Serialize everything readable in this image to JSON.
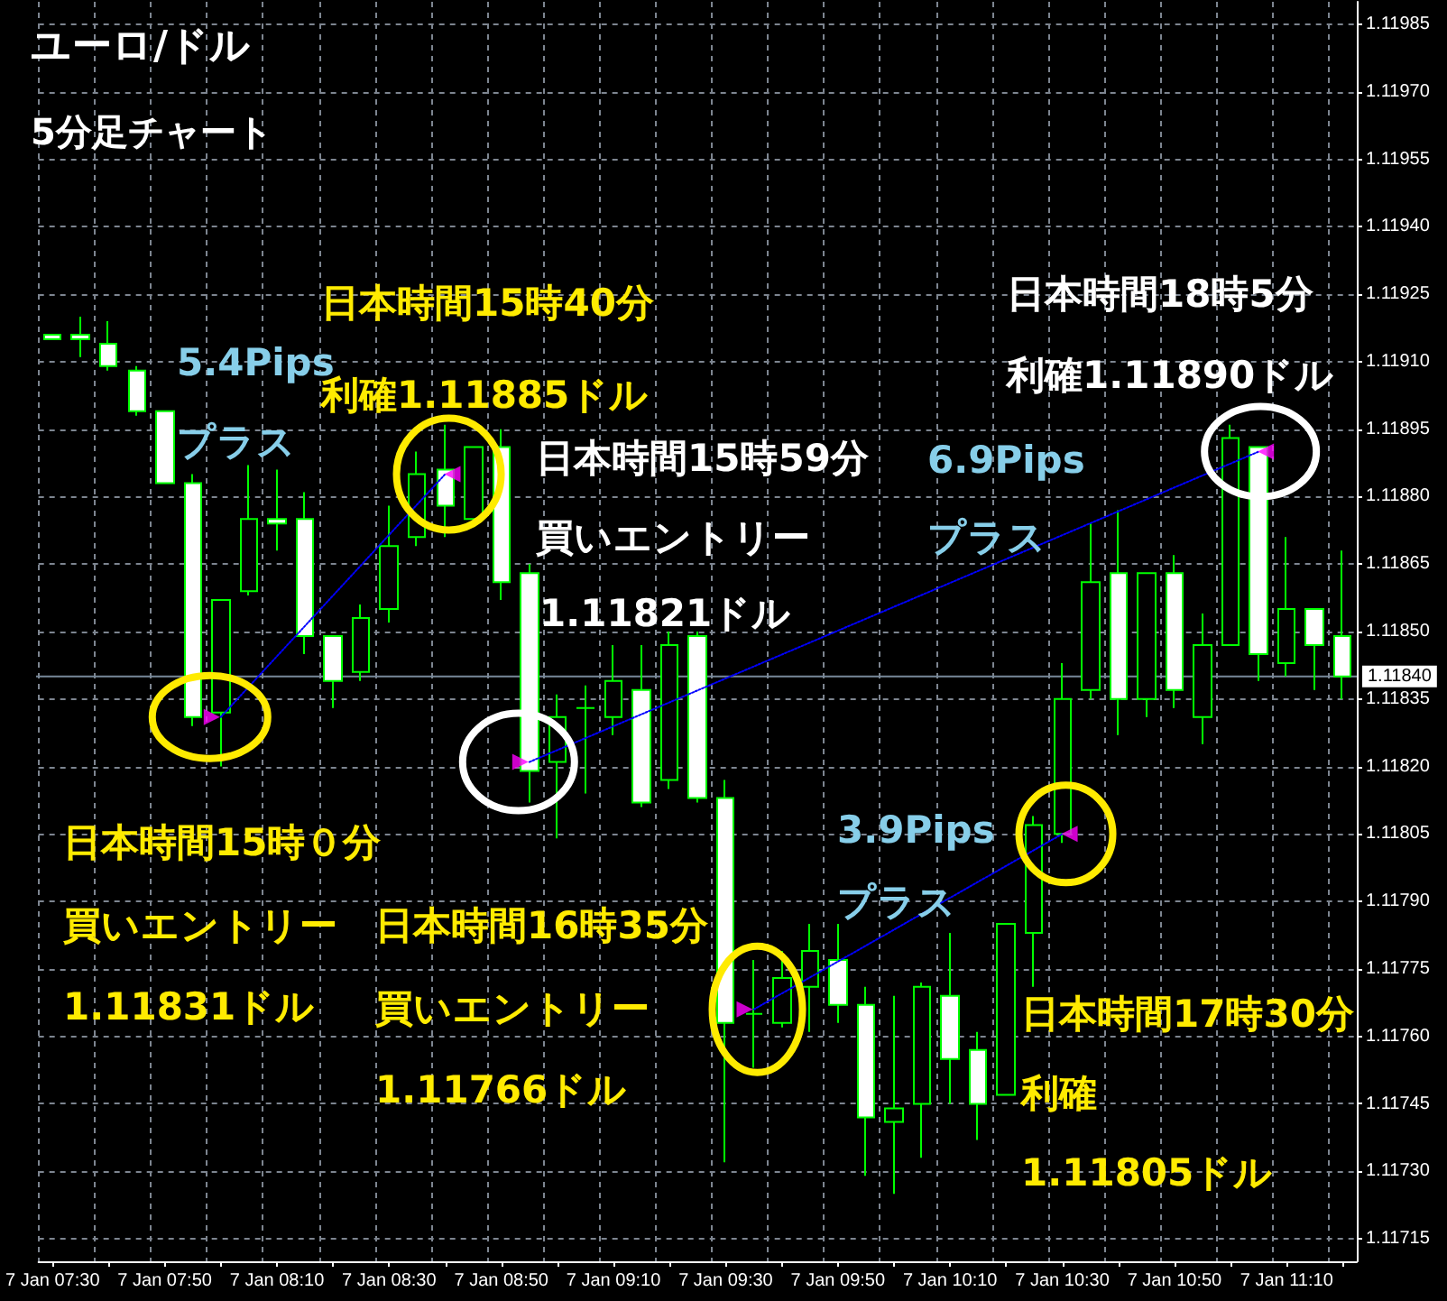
{
  "chart_data": {
    "type": "candlestick",
    "title": "ユーロ/ドル",
    "subtitle": "5分足チャート",
    "categories": [
      "7 Jan 07:30",
      null,
      null,
      null,
      "7 Jan 07:50",
      null,
      null,
      null,
      "7 Jan 08:10",
      null,
      null,
      null,
      "7 Jan 08:30",
      null,
      null,
      null,
      "7 Jan 08:50",
      null,
      null,
      null,
      "7 Jan 09:10",
      null,
      null,
      null,
      "7 Jan 09:30",
      null,
      null,
      null,
      "7 Jan 09:50",
      null,
      null,
      null,
      "7 Jan 10:10",
      null,
      null,
      null,
      "7 Jan 10:30",
      null,
      null,
      null,
      "7 Jan 10:50",
      null,
      null,
      null,
      "7 Jan 11:10",
      null,
      null
    ],
    "ohlc": [
      [
        1.11916,
        1.11916,
        1.11915,
        1.11915
      ],
      [
        1.11916,
        1.1192,
        1.11911,
        1.11915
      ],
      [
        1.11914,
        1.11919,
        1.11908,
        1.11909
      ],
      [
        1.11908,
        1.11909,
        1.11898,
        1.11899
      ],
      [
        1.11899,
        1.11899,
        1.11883,
        1.11883
      ],
      [
        1.11883,
        1.11885,
        1.11829,
        1.11831
      ],
      [
        1.11832,
        1.11857,
        1.1182,
        1.11857
      ],
      [
        1.11859,
        1.11887,
        1.11858,
        1.11875
      ],
      [
        1.11875,
        1.11886,
        1.11868,
        1.11874
      ],
      [
        1.11875,
        1.11881,
        1.11845,
        1.11849
      ],
      [
        1.11849,
        1.11849,
        1.11833,
        1.11839
      ],
      [
        1.11841,
        1.11856,
        1.11839,
        1.11853
      ],
      [
        1.11855,
        1.11878,
        1.11852,
        1.11869
      ],
      [
        1.11871,
        1.1189,
        1.11869,
        1.11885
      ],
      [
        1.11886,
        1.11896,
        1.11871,
        1.11878
      ],
      [
        1.11875,
        1.11891,
        1.11875,
        1.11891
      ],
      [
        1.11891,
        1.11895,
        1.11857,
        1.11861
      ],
      [
        1.11863,
        1.11865,
        1.11812,
        1.11819
      ],
      [
        1.11821,
        1.11836,
        1.11804,
        1.11831
      ],
      [
        1.11833,
        1.11838,
        1.11814,
        1.11833
      ],
      [
        1.11831,
        1.11847,
        1.11827,
        1.11839
      ],
      [
        1.11837,
        1.11847,
        1.11811,
        1.11812
      ],
      [
        1.11817,
        1.1185,
        1.11815,
        1.11847
      ],
      [
        1.11849,
        1.1185,
        1.11812,
        1.11813
      ],
      [
        1.11813,
        1.11817,
        1.11732,
        1.11763
      ],
      [
        1.11765,
        1.11777,
        1.11753,
        1.11765
      ],
      [
        1.11763,
        1.11779,
        1.11762,
        1.11773
      ],
      [
        1.11771,
        1.11785,
        1.11761,
        1.11779
      ],
      [
        1.11777,
        1.11785,
        1.11763,
        1.11767
      ],
      [
        1.11767,
        1.11771,
        1.11729,
        1.11742
      ],
      [
        1.11741,
        1.11769,
        1.11725,
        1.11744
      ],
      [
        1.11745,
        1.11772,
        1.11733,
        1.11771
      ],
      [
        1.11769,
        1.11783,
        1.11745,
        1.11755
      ],
      [
        1.11757,
        1.11761,
        1.11737,
        1.11745
      ],
      [
        1.11747,
        1.11785,
        1.11747,
        1.11785
      ],
      [
        1.11783,
        1.11809,
        1.11771,
        1.11807
      ],
      [
        1.11805,
        1.11843,
        1.11803,
        1.11835
      ],
      [
        1.11837,
        1.11874,
        1.11835,
        1.11861
      ],
      [
        1.11863,
        1.11877,
        1.11827,
        1.11835
      ],
      [
        1.11835,
        1.11863,
        1.11831,
        1.11863
      ],
      [
        1.11863,
        1.11867,
        1.11833,
        1.11837
      ],
      [
        1.11831,
        1.11854,
        1.11825,
        1.11847
      ],
      [
        1.11847,
        1.11896,
        1.11847,
        1.11893
      ],
      [
        1.11891,
        1.11891,
        1.11839,
        1.11845
      ],
      [
        1.11843,
        1.11871,
        1.1184,
        1.11855
      ],
      [
        1.11855,
        1.11855,
        1.11837,
        1.11847
      ],
      [
        1.11849,
        1.11868,
        1.11835,
        1.1184
      ]
    ],
    "color": "#00ff00",
    "series": [
      {
        "type": "line",
        "color": "#0000ff",
        "line_style": "dotted",
        "values": [
          null,
          null,
          null,
          null,
          null,
          null,
          1.11831,
          null,
          null,
          null,
          null,
          null,
          null,
          null,
          1.11885,
          null,
          null,
          null,
          null,
          null,
          null,
          null,
          null,
          null,
          null,
          null,
          null,
          null,
          null,
          null,
          null,
          null,
          null,
          null,
          null,
          null,
          null,
          null,
          null,
          null,
          null,
          null,
          null,
          null,
          null,
          null,
          null
        ]
      },
      {
        "type": "line",
        "color": "#0000ff",
        "line_style": "dotted",
        "values": [
          null,
          null,
          null,
          null,
          null,
          null,
          null,
          null,
          null,
          null,
          null,
          null,
          null,
          null,
          null,
          null,
          null,
          1.11821,
          null,
          null,
          null,
          null,
          null,
          null,
          null,
          null,
          null,
          null,
          null,
          null,
          null,
          null,
          null,
          null,
          null,
          null,
          null,
          null,
          null,
          null,
          null,
          null,
          null,
          1.1189,
          null,
          null,
          null
        ]
      },
      {
        "type": "line",
        "color": "#0000ff",
        "line_style": "dotted",
        "values": [
          null,
          null,
          null,
          null,
          null,
          null,
          null,
          null,
          null,
          null,
          null,
          null,
          null,
          null,
          null,
          null,
          null,
          null,
          null,
          null,
          null,
          null,
          null,
          null,
          null,
          1.11766,
          null,
          null,
          null,
          null,
          null,
          null,
          null,
          null,
          null,
          null,
          1.11805,
          null,
          null,
          null,
          null,
          null,
          null,
          null,
          null,
          null,
          null
        ]
      },
      {
        "type": "scatter",
        "color": "#ff00ff",
        "marker": "triangle",
        "values": [
          null,
          null,
          null,
          null,
          null,
          null,
          1.11831,
          null,
          null,
          null,
          null,
          null,
          null,
          null,
          null,
          null,
          null,
          1.11821,
          null,
          null,
          null,
          null,
          null,
          null,
          null,
          1.11766,
          null,
          null,
          null,
          null,
          null,
          null,
          null,
          null,
          null,
          null,
          null,
          null,
          null,
          null,
          null,
          null,
          null,
          null,
          null,
          null,
          null
        ]
      },
      {
        "type": "scatter",
        "color": "#ff00ff",
        "marker": "triangle",
        "values": [
          null,
          null,
          null,
          null,
          null,
          null,
          null,
          null,
          null,
          null,
          null,
          null,
          null,
          null,
          1.11885,
          null,
          null,
          null,
          null,
          null,
          null,
          null,
          null,
          null,
          null,
          null,
          null,
          null,
          null,
          null,
          null,
          null,
          null,
          null,
          null,
          null,
          1.11805,
          null,
          null,
          null,
          null,
          null,
          null,
          1.1189,
          null,
          null,
          null
        ]
      }
    ],
    "ylim": [
      1.1171,
      1.1199
    ],
    "yticks": [
      1.11715,
      {
        "value": 1.1173,
        "label": "1.11730"
      },
      1.11745,
      {
        "value": 1.1176,
        "label": "1.11760"
      },
      1.11775,
      {
        "value": 1.1179,
        "label": "1.11790"
      },
      1.11805,
      {
        "value": 1.1182,
        "label": "1.11820"
      },
      1.11835,
      {
        "value": 1.1185,
        "label": "1.11850"
      },
      1.11865,
      {
        "value": 1.1188,
        "label": "1.11880"
      },
      1.11895,
      {
        "value": 1.1191,
        "label": "1.11910"
      },
      1.11925,
      {
        "value": 1.1194,
        "label": "1.11940"
      },
      1.11955,
      {
        "value": 1.1197,
        "label": "1.11970"
      },
      1.11985
    ],
    "ref_lines": [
      {
        "axis": "y",
        "value": 1.1184,
        "label": "1.11840",
        "color": "#778899"
      }
    ],
    "grid": true,
    "annotations": [
      "5.4Pips",
      "プラス",
      "日本時間15時40分",
      "利確1.11885ドル",
      "日本時間15時59分",
      "買いエントリー",
      "1.11821ドル",
      "6.9Pips",
      "プラス",
      "日本時間18時5分",
      "利確1.11890ドル",
      "日本時間15時０分",
      "買いエントリー",
      "1.11831ドル",
      "日本時間16時35分",
      "買いエントリー",
      "1.11766ドル",
      "3.9Pips",
      "プラス",
      "日本時間17時30分",
      "利確",
      "1.11805ドル"
    ]
  }
}
